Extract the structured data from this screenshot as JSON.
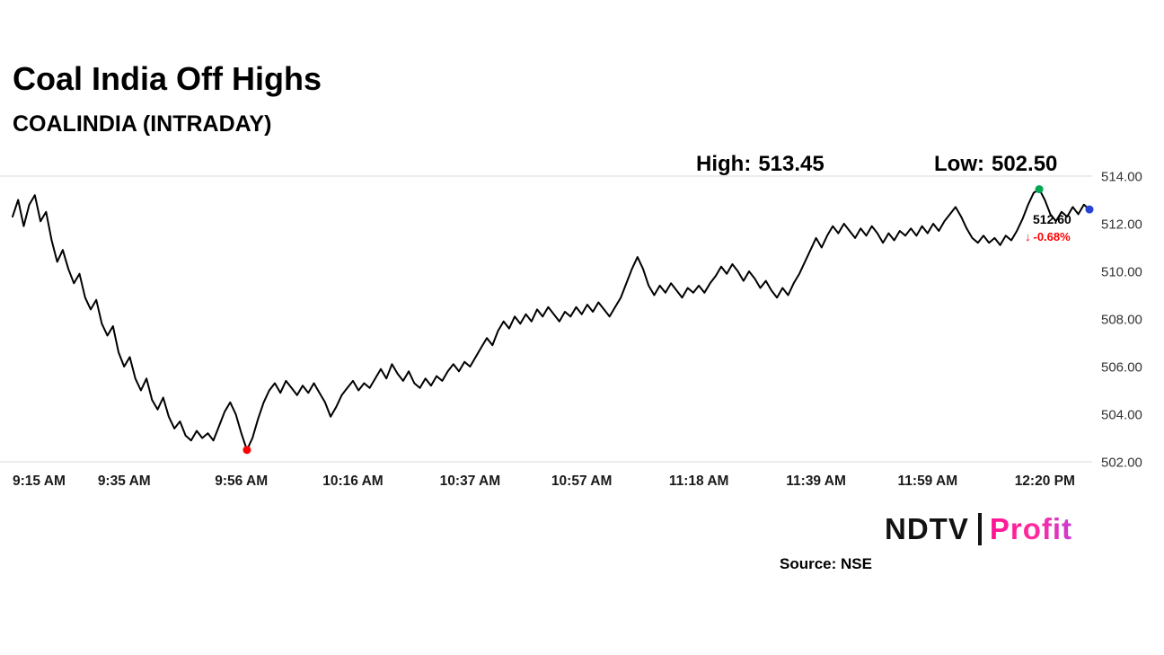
{
  "header": {
    "title": "Coal India Off Highs",
    "subtitle": "COALINDIA (INTRADAY)"
  },
  "annotations": {
    "high": {
      "label": "High:",
      "value": "513.45",
      "t": 184,
      "v": 513.45,
      "marker_color": "#00a651"
    },
    "low": {
      "label": "Low:",
      "value": "502.50",
      "t": 42,
      "v": 502.5,
      "marker_color": "#ff0000"
    },
    "last": {
      "price": "512.60",
      "arrow": "↓",
      "change": "-0.68%",
      "t": 193,
      "v": 512.6,
      "marker_color": "#2743d6",
      "change_color": "#ff0000"
    }
  },
  "chart_data": {
    "type": "line",
    "title": "Coal India Off Highs",
    "subtitle": "COALINDIA (INTRADAY)",
    "line_color": "#000000",
    "grid_color": "#d9d9d9",
    "ylim": [
      502,
      514
    ],
    "x_range": [
      0,
      193
    ],
    "gridlines_at": [
      514,
      502
    ],
    "y_ticks": [
      {
        "label": "514.00",
        "v": 514
      },
      {
        "label": "512.00",
        "v": 512
      },
      {
        "label": "510.00",
        "v": 510
      },
      {
        "label": "508.00",
        "v": 508
      },
      {
        "label": "506.00",
        "v": 506
      },
      {
        "label": "504.00",
        "v": 504
      },
      {
        "label": "502.00",
        "v": 502
      }
    ],
    "x_ticks": [
      {
        "label": "9:15 AM",
        "t": 0
      },
      {
        "label": "9:35 AM",
        "t": 20
      },
      {
        "label": "9:56 AM",
        "t": 41
      },
      {
        "label": "10:16 AM",
        "t": 61
      },
      {
        "label": "10:37 AM",
        "t": 82
      },
      {
        "label": "10:57 AM",
        "t": 102
      },
      {
        "label": "11:18 AM",
        "t": 123
      },
      {
        "label": "11:39 AM",
        "t": 144
      },
      {
        "label": "11:59 AM",
        "t": 164
      },
      {
        "label": "12:20 PM",
        "t": 185
      }
    ],
    "series": [
      {
        "name": "COALINDIA",
        "points": [
          [
            0,
            512.3
          ],
          [
            1,
            513.0
          ],
          [
            2,
            511.9
          ],
          [
            3,
            512.8
          ],
          [
            4,
            513.2
          ],
          [
            5,
            512.1
          ],
          [
            6,
            512.5
          ],
          [
            7,
            511.3
          ],
          [
            8,
            510.4
          ],
          [
            9,
            510.9
          ],
          [
            10,
            510.1
          ],
          [
            11,
            509.5
          ],
          [
            12,
            509.9
          ],
          [
            13,
            508.9
          ],
          [
            14,
            508.4
          ],
          [
            15,
            508.8
          ],
          [
            16,
            507.8
          ],
          [
            17,
            507.3
          ],
          [
            18,
            507.7
          ],
          [
            19,
            506.6
          ],
          [
            20,
            506.0
          ],
          [
            21,
            506.4
          ],
          [
            22,
            505.5
          ],
          [
            23,
            505.0
          ],
          [
            24,
            505.5
          ],
          [
            25,
            504.6
          ],
          [
            26,
            504.2
          ],
          [
            27,
            504.7
          ],
          [
            28,
            503.9
          ],
          [
            29,
            503.4
          ],
          [
            30,
            503.7
          ],
          [
            31,
            503.1
          ],
          [
            32,
            502.9
          ],
          [
            33,
            503.3
          ],
          [
            34,
            503.0
          ],
          [
            35,
            503.2
          ],
          [
            36,
            502.9
          ],
          [
            37,
            503.5
          ],
          [
            38,
            504.1
          ],
          [
            39,
            504.5
          ],
          [
            40,
            504.0
          ],
          [
            41,
            503.2
          ],
          [
            42,
            502.5
          ],
          [
            43,
            503.0
          ],
          [
            44,
            503.8
          ],
          [
            45,
            504.5
          ],
          [
            46,
            505.0
          ],
          [
            47,
            505.3
          ],
          [
            48,
            504.9
          ],
          [
            49,
            505.4
          ],
          [
            50,
            505.1
          ],
          [
            51,
            504.8
          ],
          [
            52,
            505.2
          ],
          [
            53,
            504.9
          ],
          [
            54,
            505.3
          ],
          [
            55,
            504.9
          ],
          [
            56,
            504.5
          ],
          [
            57,
            503.9
          ],
          [
            58,
            504.3
          ],
          [
            59,
            504.8
          ],
          [
            60,
            505.1
          ],
          [
            61,
            505.4
          ],
          [
            62,
            505.0
          ],
          [
            63,
            505.3
          ],
          [
            64,
            505.1
          ],
          [
            65,
            505.5
          ],
          [
            66,
            505.9
          ],
          [
            67,
            505.5
          ],
          [
            68,
            506.1
          ],
          [
            69,
            505.7
          ],
          [
            70,
            505.4
          ],
          [
            71,
            505.8
          ],
          [
            72,
            505.3
          ],
          [
            73,
            505.1
          ],
          [
            74,
            505.5
          ],
          [
            75,
            505.2
          ],
          [
            76,
            505.6
          ],
          [
            77,
            505.4
          ],
          [
            78,
            505.8
          ],
          [
            79,
            506.1
          ],
          [
            80,
            505.8
          ],
          [
            81,
            506.2
          ],
          [
            82,
            506.0
          ],
          [
            83,
            506.4
          ],
          [
            84,
            506.8
          ],
          [
            85,
            507.2
          ],
          [
            86,
            506.9
          ],
          [
            87,
            507.5
          ],
          [
            88,
            507.9
          ],
          [
            89,
            507.6
          ],
          [
            90,
            508.1
          ],
          [
            91,
            507.8
          ],
          [
            92,
            508.2
          ],
          [
            93,
            507.9
          ],
          [
            94,
            508.4
          ],
          [
            95,
            508.1
          ],
          [
            96,
            508.5
          ],
          [
            97,
            508.2
          ],
          [
            98,
            507.9
          ],
          [
            99,
            508.3
          ],
          [
            100,
            508.1
          ],
          [
            101,
            508.5
          ],
          [
            102,
            508.2
          ],
          [
            103,
            508.6
          ],
          [
            104,
            508.3
          ],
          [
            105,
            508.7
          ],
          [
            106,
            508.4
          ],
          [
            107,
            508.1
          ],
          [
            108,
            508.5
          ],
          [
            109,
            508.9
          ],
          [
            110,
            509.5
          ],
          [
            111,
            510.1
          ],
          [
            112,
            510.6
          ],
          [
            113,
            510.1
          ],
          [
            114,
            509.4
          ],
          [
            115,
            509.0
          ],
          [
            116,
            509.4
          ],
          [
            117,
            509.1
          ],
          [
            118,
            509.5
          ],
          [
            119,
            509.2
          ],
          [
            120,
            508.9
          ],
          [
            121,
            509.3
          ],
          [
            122,
            509.1
          ],
          [
            123,
            509.4
          ],
          [
            124,
            509.1
          ],
          [
            125,
            509.5
          ],
          [
            126,
            509.8
          ],
          [
            127,
            510.2
          ],
          [
            128,
            509.9
          ],
          [
            129,
            510.3
          ],
          [
            130,
            510.0
          ],
          [
            131,
            509.6
          ],
          [
            132,
            510.0
          ],
          [
            133,
            509.7
          ],
          [
            134,
            509.3
          ],
          [
            135,
            509.6
          ],
          [
            136,
            509.2
          ],
          [
            137,
            508.9
          ],
          [
            138,
            509.3
          ],
          [
            139,
            509.0
          ],
          [
            140,
            509.5
          ],
          [
            141,
            509.9
          ],
          [
            142,
            510.4
          ],
          [
            143,
            510.9
          ],
          [
            144,
            511.4
          ],
          [
            145,
            511.0
          ],
          [
            146,
            511.5
          ],
          [
            147,
            511.9
          ],
          [
            148,
            511.6
          ],
          [
            149,
            512.0
          ],
          [
            150,
            511.7
          ],
          [
            151,
            511.4
          ],
          [
            152,
            511.8
          ],
          [
            153,
            511.5
          ],
          [
            154,
            511.9
          ],
          [
            155,
            511.6
          ],
          [
            156,
            511.2
          ],
          [
            157,
            511.6
          ],
          [
            158,
            511.3
          ],
          [
            159,
            511.7
          ],
          [
            160,
            511.5
          ],
          [
            161,
            511.8
          ],
          [
            162,
            511.5
          ],
          [
            163,
            511.9
          ],
          [
            164,
            511.6
          ],
          [
            165,
            512.0
          ],
          [
            166,
            511.7
          ],
          [
            167,
            512.1
          ],
          [
            168,
            512.4
          ],
          [
            169,
            512.7
          ],
          [
            170,
            512.3
          ],
          [
            171,
            511.8
          ],
          [
            172,
            511.4
          ],
          [
            173,
            511.2
          ],
          [
            174,
            511.5
          ],
          [
            175,
            511.2
          ],
          [
            176,
            511.4
          ],
          [
            177,
            511.1
          ],
          [
            178,
            511.5
          ],
          [
            179,
            511.3
          ],
          [
            180,
            511.7
          ],
          [
            181,
            512.2
          ],
          [
            182,
            512.8
          ],
          [
            183,
            513.3
          ],
          [
            184,
            513.45
          ],
          [
            185,
            513.0
          ],
          [
            186,
            512.4
          ],
          [
            187,
            512.1
          ],
          [
            188,
            512.5
          ],
          [
            189,
            512.3
          ],
          [
            190,
            512.7
          ],
          [
            191,
            512.4
          ],
          [
            192,
            512.8
          ],
          [
            193,
            512.6
          ]
        ]
      }
    ],
    "annotations_text": {
      "high": "High: 513.45",
      "low": "Low: 502.50",
      "last_price": "512.60",
      "last_change": "↓ -0.68%"
    },
    "legend": "none",
    "grid": "top-and-bottom-only"
  },
  "footer": {
    "logo_ndtv": "NDTV",
    "logo_profit": "Profit",
    "source": "Source: NSE"
  }
}
